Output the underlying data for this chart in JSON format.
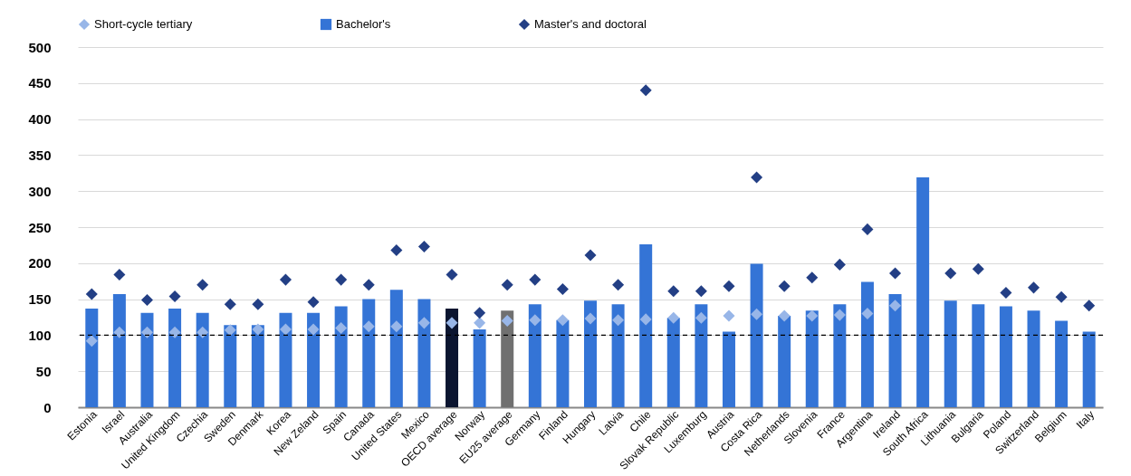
{
  "chart_data": {
    "type": "bar",
    "categories": [
      "Estonia",
      "Israel",
      "Australia",
      "United Kingdom",
      "Czechia",
      "Sweden",
      "Denmark",
      "Korea",
      "New Zeland",
      "Spain",
      "Canada",
      "United States",
      "Mexico",
      "OECD average",
      "Norway",
      "EU25 average",
      "Germany",
      "Finland",
      "Hungary",
      "Latvia",
      "Chile",
      "Slovak Republic",
      "Luxemburg",
      "Austria",
      "Costa Rica",
      "Netherlands",
      "Slovenia",
      "France",
      "Argentina",
      "Ireland",
      "South Africa",
      "Lithuania",
      "Bulgaria",
      "Poland",
      "Switzerland",
      "Belgium",
      "Italy"
    ],
    "series": [
      {
        "name": "Short-cycle tertiary",
        "type": "scatter",
        "color": "#98b6e8",
        "values": [
          92,
          104,
          104,
          104,
          104,
          107,
          108,
          108,
          108,
          110,
          112,
          112,
          117,
          117,
          117,
          120,
          121,
          121,
          123,
          121,
          122,
          124,
          124,
          127,
          129,
          127,
          127,
          128,
          130,
          141,
          null,
          null,
          null,
          null,
          null,
          null,
          null
        ]
      },
      {
        "name": "Bachelor's",
        "type": "bar",
        "color": "#3474d6",
        "colors": [
          "#3474d6",
          "#3474d6",
          "#3474d6",
          "#3474d6",
          "#3474d6",
          "#3474d6",
          "#3474d6",
          "#3474d6",
          "#3474d6",
          "#3474d6",
          "#3474d6",
          "#3474d6",
          "#3474d6",
          "#0b1530",
          "#3474d6",
          "#707070",
          "#3474d6",
          "#3474d6",
          "#3474d6",
          "#3474d6",
          "#3474d6",
          "#3474d6",
          "#3474d6",
          "#3474d6",
          "#3474d6",
          "#3474d6",
          "#3474d6",
          "#3474d6",
          "#3474d6",
          "#3474d6",
          "#3474d6",
          "#3474d6",
          "#3474d6",
          "#3474d6",
          "#3474d6",
          "#3474d6",
          "#3474d6"
        ],
        "values": [
          137,
          157,
          131,
          137,
          131,
          114,
          114,
          131,
          131,
          140,
          150,
          163,
          150,
          137,
          108,
          134,
          143,
          121,
          148,
          143,
          226,
          124,
          143,
          105,
          199,
          127,
          134,
          143,
          174,
          157,
          319,
          148,
          143,
          140,
          134,
          120,
          105
        ]
      },
      {
        "name": "Master's and doctoral",
        "type": "scatter",
        "color": "#233f85",
        "values": [
          157,
          184,
          149,
          154,
          170,
          143,
          143,
          177,
          146,
          177,
          170,
          218,
          223,
          184,
          131,
          170,
          177,
          164,
          211,
          170,
          440,
          161,
          161,
          168,
          319,
          168,
          180,
          198,
          247,
          186,
          null,
          186,
          192,
          159,
          166,
          153,
          141
        ]
      }
    ],
    "ylim": [
      0,
      500
    ],
    "yticks": [
      0,
      50,
      100,
      150,
      200,
      250,
      300,
      350,
      400,
      450,
      500
    ],
    "grid": "y",
    "legend": "top",
    "marker": "diamond",
    "ref_lines": [
      {
        "axis": "y",
        "value": 100,
        "color": "#000000",
        "line_style": "dashed"
      }
    ]
  }
}
